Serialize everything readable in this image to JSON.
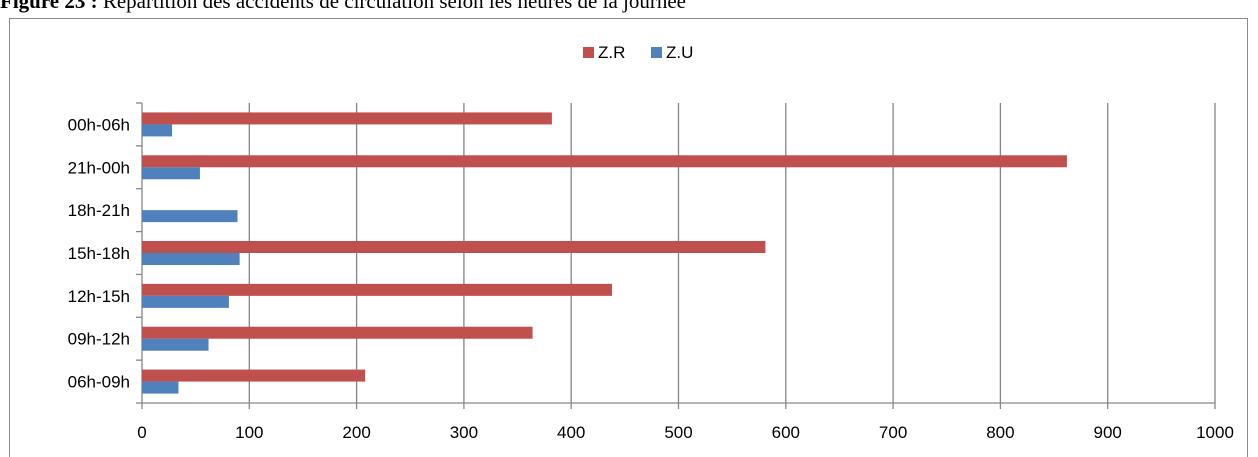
{
  "caption": {
    "number": "Figure 23 :",
    "text": " Répartition des accidents de circulation selon les heures de la journée"
  },
  "colors": {
    "zr": "#c0504d",
    "zu": "#4f81bd",
    "grid": "#868686"
  },
  "chart_data": {
    "type": "bar",
    "orientation": "horizontal",
    "categories": [
      "06h-09h",
      "09h-12h",
      "12h-15h",
      "15h-18h",
      "18h-21h",
      "21h-00h",
      "00h-06h"
    ],
    "series": [
      {
        "name": "Z.R",
        "values": [
          208,
          364,
          438,
          581,
          0,
          862,
          382
        ]
      },
      {
        "name": "Z.U",
        "values": [
          34,
          62,
          81,
          91,
          89,
          54,
          28
        ]
      }
    ],
    "xlim": [
      0,
      1000
    ],
    "xticks": [
      0,
      100,
      200,
      300,
      400,
      500,
      600,
      700,
      800,
      900,
      1000
    ],
    "grid": "vertical",
    "legend_position": "top-center",
    "title": "",
    "xlabel": "",
    "ylabel": ""
  }
}
